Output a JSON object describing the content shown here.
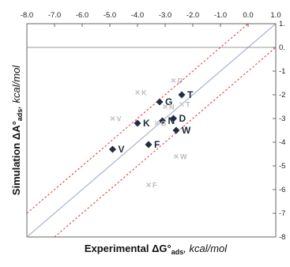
{
  "chart_data": {
    "type": "scatter",
    "title": "",
    "xlim": [
      -8.0,
      1.0
    ],
    "ylim": [
      -8.0,
      1.0
    ],
    "x_ticks": [
      "-8.0",
      "-7.0",
      "-6.0",
      "-5.0",
      "-4.0",
      "-3.0",
      "-2.0",
      "-1.0",
      "0.0",
      "1.0"
    ],
    "y_ticks": [
      "1.",
      "0.",
      "-1",
      "-2",
      "-3",
      "-4",
      "-5",
      "-6",
      "-7",
      "-8"
    ],
    "xlabel": {
      "main": "Experimental ΔG°",
      "sub": "ads",
      "unit": ", kcal/mol"
    },
    "ylabel": {
      "main": "Simulation ΔA°",
      "sub": "ads",
      "unit": ", kcal/mol"
    },
    "reference_lines": [
      {
        "kind": "identity",
        "offset": 0,
        "color": "#a8b4d0",
        "style": "solid"
      },
      {
        "kind": "band",
        "offset": 1,
        "color": "#e84040",
        "style": "dotted"
      },
      {
        "kind": "band",
        "offset": -1,
        "color": "#e84040",
        "style": "dotted"
      }
    ],
    "grid": false,
    "series": [
      {
        "color": "#1f2d45",
        "marker": "diamond",
        "points": [
          {
            "label": "T",
            "x": -2.4,
            "y": -2.0
          },
          {
            "label": "G",
            "x": -3.2,
            "y": -2.3
          },
          {
            "label": "K",
            "x": -4.0,
            "y": -3.2
          },
          {
            "label": "D",
            "x": -2.7,
            "y": -3.0
          },
          {
            "label": "N",
            "x": -3.1,
            "y": -3.1
          },
          {
            "label": "W",
            "x": -2.6,
            "y": -3.5
          },
          {
            "label": "F",
            "x": -3.6,
            "y": -4.1
          },
          {
            "label": "V",
            "x": -4.9,
            "y": -4.3
          }
        ]
      },
      {
        "color": "#c8c8c8",
        "marker": "x",
        "points": [
          {
            "label": "D",
            "x": -2.7,
            "y": -1.4
          },
          {
            "label": "K",
            "x": -4.0,
            "y": -1.9
          },
          {
            "label": "N",
            "x": -3.0,
            "y": -2.5
          },
          {
            "label": "T",
            "x": -2.4,
            "y": -2.4
          },
          {
            "label": "V",
            "x": -4.9,
            "y": -3.0
          },
          {
            "label": "G",
            "x": -3.3,
            "y": -3.2
          },
          {
            "label": "W",
            "x": -2.6,
            "y": -4.6
          },
          {
            "label": "F",
            "x": -3.6,
            "y": -5.8
          }
        ]
      }
    ]
  }
}
